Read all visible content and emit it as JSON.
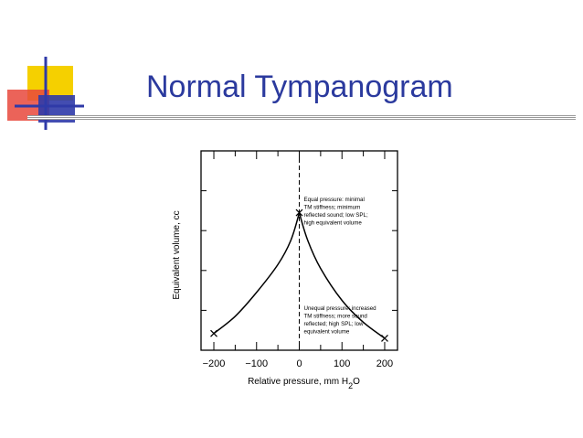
{
  "slide": {
    "title": "Normal Tympanogram",
    "title_color": "#2b3a9e",
    "decor_colors": {
      "yellow": "#f5d000",
      "red": "#e8483c",
      "blue": "#2f3aa8"
    }
  },
  "chart_data": {
    "type": "line",
    "title": "",
    "xlabel": "Relative pressure, mm H2O",
    "xlabel_parts": [
      "Relative pressure, mm H",
      "2",
      "O"
    ],
    "ylabel": "Equivalent volume, cc",
    "xlim": [
      -230,
      230
    ],
    "ylim": [
      0,
      5
    ],
    "x_ticks": [
      -200,
      -100,
      0,
      100,
      200
    ],
    "x_tick_labels": [
      "−200",
      "−100",
      "0",
      "100",
      "200"
    ],
    "grid": false,
    "series": [
      {
        "x": [
          -200,
          -150,
          -100,
          -50,
          -20,
          0,
          20,
          50,
          100,
          150,
          200
        ],
        "y": [
          0.42,
          0.85,
          1.45,
          2.15,
          2.75,
          3.45,
          2.75,
          2.05,
          1.25,
          0.7,
          0.3
        ]
      }
    ],
    "marked_points": [
      {
        "x": -200,
        "y": 0.42
      },
      {
        "x": 0,
        "y": 3.45
      },
      {
        "x": 200,
        "y": 0.3
      }
    ],
    "reference_line": {
      "x": 0,
      "style": "dashed"
    },
    "annotations": [
      {
        "anchor_x": 0,
        "anchor_y": 3.45,
        "lines": [
          "Equal pressure: minimal",
          "TM stiffness; minimum",
          "reflected sound; low SPL;",
          "high equivalent volume"
        ]
      },
      {
        "anchor_x": 200,
        "anchor_y": 0.3,
        "lines": [
          "Unequal pressure: increased",
          "TM stiffness; more sound",
          "reflected; high SPL; low",
          "equivalent volume"
        ]
      }
    ]
  }
}
